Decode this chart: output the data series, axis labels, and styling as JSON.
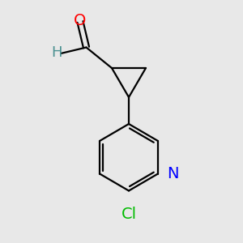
{
  "background_color": "#e8e8e8",
  "bond_color": "#000000",
  "atom_colors": {
    "O": "#ff0000",
    "N": "#0000ff",
    "Cl": "#00bb00",
    "H": "#4a9090",
    "C": "#000000"
  },
  "bond_width": 1.6,
  "font_size_atoms": 14,
  "fig_width": 3.0,
  "fig_height": 3.0,
  "dpi": 100,
  "xlim": [
    0,
    10
  ],
  "ylim": [
    0,
    10
  ],
  "cp_left_x": 4.6,
  "cp_left_y": 7.2,
  "cp_right_x": 6.0,
  "cp_right_y": 7.2,
  "cp_bottom_x": 5.3,
  "cp_bottom_y": 6.0,
  "ald_c_x": 3.55,
  "ald_c_y": 8.05,
  "o_x": 3.3,
  "o_y": 9.1,
  "h_x": 2.5,
  "h_y": 7.8,
  "py_v0_x": 5.3,
  "py_v0_y": 4.9,
  "py_v1_x": 4.1,
  "py_v1_y": 4.2,
  "py_v2_x": 4.1,
  "py_v2_y": 2.85,
  "py_v3_x": 5.3,
  "py_v3_y": 2.15,
  "py_v4_x": 6.5,
  "py_v4_y": 2.85,
  "py_v5_x": 6.5,
  "py_v5_y": 4.2,
  "cl_x": 5.3,
  "cl_y": 1.2,
  "n_x": 7.1,
  "n_y": 2.85
}
